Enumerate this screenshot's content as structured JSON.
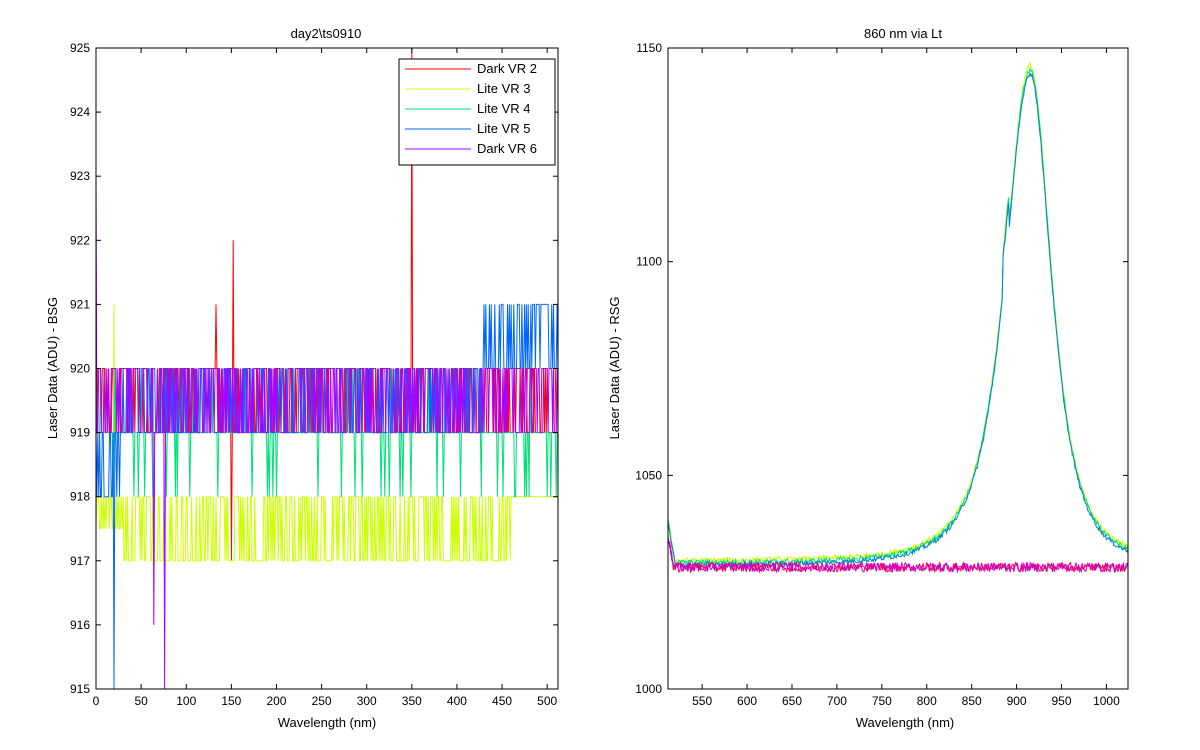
{
  "chart_data": [
    {
      "type": "line",
      "title": "day2\\ts0910",
      "xlabel": "Wavelength (nm)",
      "ylabel": "Laser Data (ADU) - BSG",
      "xlim": [
        0,
        512
      ],
      "ylim": [
        915,
        925
      ],
      "xticks": [
        "0",
        "50",
        "100",
        "150",
        "200",
        "250",
        "300",
        "350",
        "400",
        "450",
        "500"
      ],
      "yticks": [
        "915",
        "916",
        "917",
        "918",
        "919",
        "920",
        "921",
        "922",
        "923",
        "924",
        "925"
      ],
      "legend_position": "top-right",
      "series": [
        {
          "name": "Dark VR 2",
          "color": "#ff0000",
          "base": 919.5,
          "amp": 0.5,
          "spikes": [
            [
              133,
              921
            ],
            [
              152,
              922
            ],
            [
              350,
              925
            ]
          ],
          "dips": [
            [
              150,
              917
            ]
          ]
        },
        {
          "name": "Lite VR 3",
          "color": "#ccff00",
          "base": 917.5,
          "amp": 0.5,
          "spikes": [
            [
              20,
              921
            ]
          ],
          "tail": [
            [
              480,
              918.5
            ],
            [
              512,
              918
            ]
          ]
        },
        {
          "name": "Lite VR 4",
          "color": "#00e078",
          "base": 919,
          "amp": 0.6,
          "spikes": [],
          "dips": []
        },
        {
          "name": "Lite VR 5",
          "color": "#0066ff",
          "base": 919.5,
          "amp": 0.5,
          "spikes": [
            [
              430,
              921
            ],
            [
              460,
              921
            ],
            [
              500,
              921
            ]
          ],
          "dips": [
            [
              20,
              915
            ]
          ]
        },
        {
          "name": "Dark VR 6",
          "color": "#aa00ff",
          "base": 919.5,
          "amp": 0.5,
          "spikes": [
            [
              0,
              923
            ]
          ],
          "dips": [
            [
              64,
              916
            ],
            [
              76,
              915
            ]
          ]
        }
      ]
    },
    {
      "type": "line",
      "title": "860 nm via Lt",
      "xlabel": "Wavelength (nm)",
      "ylabel": "Laser Data (ADU) - RSG",
      "xlim": [
        512,
        1024
      ],
      "ylim": [
        1000,
        1150
      ],
      "xticks": [
        "550",
        "600",
        "650",
        "700",
        "750",
        "800",
        "850",
        "900",
        "950",
        "1000"
      ],
      "yticks": [
        "1000",
        "1050",
        "1100",
        "1150"
      ],
      "series": [
        {
          "name": "Lite VR 3",
          "color": "#ccff00",
          "kind": "peak",
          "peak_x": 915,
          "peak_y": 1146,
          "baseline": 1030
        },
        {
          "name": "Lite VR 4",
          "color": "#00e078",
          "kind": "peak",
          "peak_x": 915,
          "peak_y": 1145,
          "baseline": 1029.5
        },
        {
          "name": "Lite VR 5",
          "color": "#0088cc",
          "kind": "peak",
          "peak_x": 915,
          "peak_y": 1144,
          "baseline": 1029
        },
        {
          "name": "Dark VR 2",
          "color": "#ff0040",
          "kind": "flat",
          "baseline": 1028.5
        },
        {
          "name": "Dark VR 6",
          "color": "#cc00cc",
          "kind": "flat",
          "baseline": 1028.5
        }
      ]
    }
  ]
}
